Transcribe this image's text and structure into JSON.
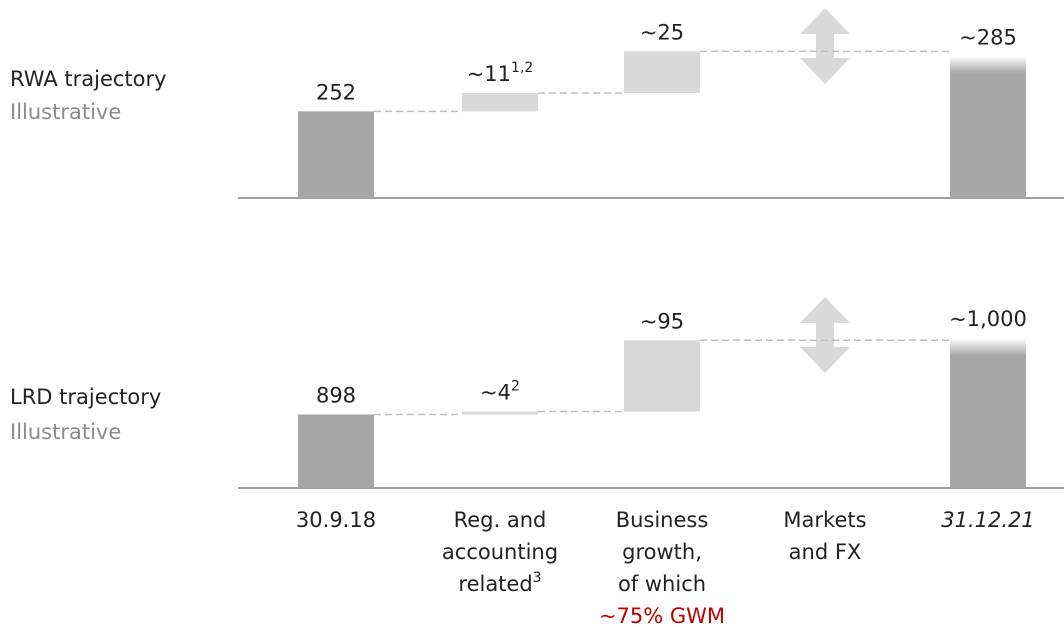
{
  "chart_data": [
    {
      "type": "waterfall",
      "title": "RWA trajectory",
      "subtitle": "Illustrative",
      "values": [
        252,
        11,
        25,
        null,
        285
      ],
      "value_labels": [
        "252",
        "~11",
        "~25",
        null,
        "~285"
      ],
      "value_label_notes": [
        null,
        "1,2",
        null,
        null,
        null
      ],
      "measures": [
        "absolute",
        "relative",
        "relative",
        "relative",
        "total"
      ],
      "colors": {
        "absolute": "#a6a6a6",
        "relative": "#d9d9d9",
        "total": "#a6a6a6"
      },
      "ylim": [
        200,
        290
      ]
    },
    {
      "type": "waterfall",
      "title": "LRD trajectory",
      "subtitle": "Illustrative",
      "values": [
        898,
        4,
        95,
        null,
        1000
      ],
      "value_labels": [
        "898",
        "~4",
        "~95",
        null,
        "~1,000"
      ],
      "value_label_notes": [
        null,
        "2",
        null,
        null,
        null
      ],
      "measures": [
        "absolute",
        "relative",
        "relative",
        "relative",
        "total"
      ],
      "colors": {
        "absolute": "#a6a6a6",
        "relative": "#d9d9d9",
        "total": "#a6a6a6"
      },
      "ylim": [
        800,
        1000
      ],
      "categories": [
        {
          "lines": [
            "30.9.18"
          ]
        },
        {
          "lines": [
            "Reg. and",
            "accounting",
            "related"
          ],
          "note": "3"
        },
        {
          "lines": [
            "Business",
            "growth,",
            "of which"
          ],
          "highlight": "~75% GWM",
          "highlight_color": "#c00000"
        },
        {
          "lines": [
            "Markets",
            "and FX"
          ]
        },
        {
          "lines": [
            "31.12.21"
          ],
          "italic": true
        }
      ]
    }
  ]
}
